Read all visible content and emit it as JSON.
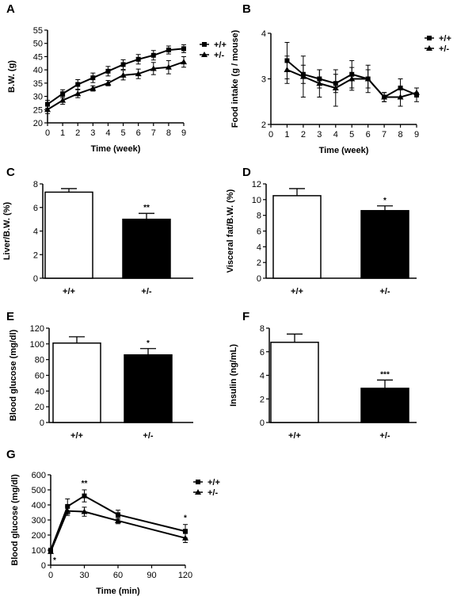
{
  "chart_data": [
    {
      "panel": "A",
      "type": "line",
      "xlabel": "Time (week)",
      "ylabel": "B.W. (g)",
      "x": [
        0,
        1,
        2,
        3,
        4,
        5,
        6,
        7,
        8,
        9
      ],
      "x_ticks": [
        "0",
        "1",
        "2",
        "3",
        "4",
        "5",
        "6",
        "7",
        "8",
        "9"
      ],
      "xlim": [
        0,
        9
      ],
      "ylim": [
        20,
        55
      ],
      "y_ticks": [
        "20",
        "25",
        "30",
        "35",
        "40",
        "45",
        "50",
        "55"
      ],
      "legend_position": "top-right",
      "series": [
        {
          "name": "+/+",
          "marker": "square",
          "values": [
            27,
            31,
            34.5,
            37,
            39.5,
            42,
            44,
            45.5,
            47.5,
            48
          ],
          "errors": [
            1.5,
            1.5,
            1.8,
            1.8,
            1.8,
            1.8,
            1.8,
            1.8,
            1.5,
            1.5
          ]
        },
        {
          "name": "+/-",
          "marker": "triangle",
          "values": [
            25,
            28.5,
            31,
            33,
            35,
            38,
            38.5,
            40.5,
            41,
            43
          ],
          "errors": [
            1.5,
            1.5,
            1.5,
            1,
            1,
            1.8,
            1.8,
            2.3,
            2.5,
            2
          ]
        }
      ]
    },
    {
      "panel": "B",
      "type": "line",
      "xlabel": "Time (week)",
      "ylabel": "Food intake (g / mouse)",
      "x": [
        1,
        2,
        3,
        4,
        5,
        6,
        7,
        8,
        9
      ],
      "x_ticks": [
        "0",
        "1",
        "2",
        "3",
        "4",
        "5",
        "6",
        "7",
        "8",
        "9"
      ],
      "xlim": [
        0,
        9
      ],
      "ylim": [
        2,
        4
      ],
      "y_ticks": [
        "2",
        "3",
        "4"
      ],
      "legend_position": "top-right",
      "series": [
        {
          "name": "+/+",
          "marker": "square",
          "values": [
            3.4,
            3.1,
            3.0,
            2.9,
            3.1,
            3.0,
            2.6,
            2.8,
            2.65
          ],
          "errors": [
            0.4,
            0.2,
            0.2,
            0.2,
            0.3,
            0.2,
            0.1,
            0.2,
            0.15
          ]
        },
        {
          "name": "+/-",
          "marker": "triangle",
          "values": [
            3.2,
            3.05,
            2.9,
            2.8,
            3.0,
            3.0,
            2.6,
            2.6,
            2.7
          ],
          "errors": [
            0.3,
            0.45,
            0.3,
            0.4,
            0.25,
            0.3,
            0.1,
            0.2,
            0.1
          ]
        }
      ]
    },
    {
      "panel": "C",
      "type": "bar",
      "ylabel": "Liver/B.W. (%)",
      "categories": [
        "+/+",
        "+/-"
      ],
      "values": [
        7.3,
        5.0
      ],
      "errors": [
        0.3,
        0.5
      ],
      "bar_colors": [
        "#ffffff",
        "#000000"
      ],
      "ylim": [
        0,
        8
      ],
      "y_ticks": [
        "0",
        "2",
        "4",
        "6",
        "8"
      ],
      "significance": [
        "",
        "**"
      ]
    },
    {
      "panel": "D",
      "type": "bar",
      "ylabel": "Visceral fat/B.W. (%)",
      "categories": [
        "+/+",
        "+/-"
      ],
      "values": [
        10.5,
        8.6
      ],
      "errors": [
        0.9,
        0.6
      ],
      "bar_colors": [
        "#ffffff",
        "#000000"
      ],
      "ylim": [
        0,
        12
      ],
      "y_ticks": [
        "0",
        "2",
        "4",
        "6",
        "8",
        "10",
        "12"
      ],
      "significance": [
        "",
        "*"
      ]
    },
    {
      "panel": "E",
      "type": "bar",
      "ylabel": "Blood glucose (mg/dl)",
      "categories": [
        "+/+",
        "+/-"
      ],
      "values": [
        101,
        86
      ],
      "errors": [
        8,
        8
      ],
      "bar_colors": [
        "#ffffff",
        "#000000"
      ],
      "ylim": [
        0,
        120
      ],
      "y_ticks": [
        "0",
        "20",
        "40",
        "60",
        "80",
        "100",
        "120"
      ],
      "significance": [
        "",
        "*"
      ]
    },
    {
      "panel": "F",
      "type": "bar",
      "ylabel": "Insulin (ng/mL)",
      "categories": [
        "+/+",
        "+/-"
      ],
      "values": [
        6.8,
        2.9
      ],
      "errors": [
        0.7,
        0.7
      ],
      "bar_colors": [
        "#ffffff",
        "#000000"
      ],
      "ylim": [
        0,
        8
      ],
      "y_ticks": [
        "0",
        "2",
        "4",
        "6",
        "8"
      ],
      "significance": [
        "",
        "***"
      ]
    },
    {
      "panel": "G",
      "type": "line",
      "xlabel": "Time (min)",
      "ylabel": "Blood glucose (mg/dl)",
      "x": [
        0,
        15,
        30,
        60,
        120
      ],
      "x_ticks": [
        "0",
        "30",
        "60",
        "90",
        "120"
      ],
      "xlim": [
        0,
        120
      ],
      "ylim": [
        0,
        600
      ],
      "y_ticks": [
        "0",
        "100",
        "200",
        "300",
        "400",
        "500",
        "600"
      ],
      "legend_position": "top-right",
      "series": [
        {
          "name": "+/+",
          "marker": "square",
          "values": [
            100,
            390,
            460,
            335,
            225
          ],
          "errors": [
            10,
            50,
            40,
            30,
            45
          ]
        },
        {
          "name": "+/-",
          "marker": "triangle",
          "values": [
            90,
            360,
            355,
            295,
            180
          ],
          "errors": [
            10,
            30,
            30,
            20,
            30
          ]
        }
      ],
      "annotations": [
        {
          "text": "*",
          "x": 0
        },
        {
          "text": "**",
          "x": 30
        },
        {
          "text": "*",
          "x": 120
        }
      ]
    }
  ]
}
